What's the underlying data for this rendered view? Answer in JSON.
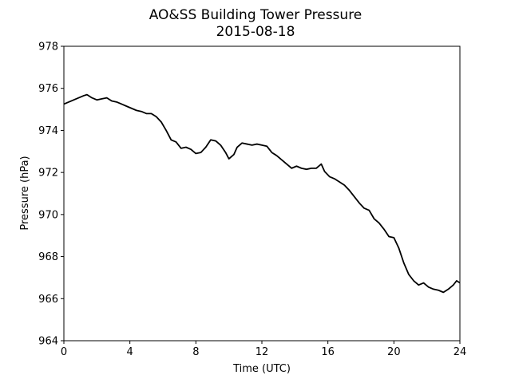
{
  "chart_data": {
    "type": "line",
    "title": "AO&SS Building Tower Pressure",
    "subtitle": "2015-08-18",
    "xlabel": "Time (UTC)",
    "ylabel": "Pressure (hPa)",
    "xlim": [
      0,
      24
    ],
    "ylim": [
      964,
      978
    ],
    "xticks": [
      0,
      4,
      8,
      12,
      16,
      20,
      24
    ],
    "yticks": [
      964,
      966,
      968,
      970,
      972,
      974,
      976,
      978
    ],
    "grid": false,
    "line_color": "#000000",
    "series": [
      {
        "x": [
          0,
          0.3,
          0.6,
          0.9,
          1.2,
          1.4,
          1.7,
          2.0,
          2.3,
          2.6,
          2.9,
          3.2,
          3.5,
          3.8,
          4.1,
          4.4,
          4.7,
          5.0,
          5.3,
          5.6,
          5.9,
          6.2,
          6.5,
          6.8,
          7.1,
          7.4,
          7.7,
          8.0,
          8.3,
          8.6,
          8.9,
          9.2,
          9.5,
          9.8,
          10.0,
          10.3,
          10.5,
          10.8,
          11.1,
          11.4,
          11.7,
          12.0,
          12.3,
          12.6,
          12.9,
          13.2,
          13.5,
          13.8,
          14.1,
          14.4,
          14.7,
          15.0,
          15.3,
          15.6,
          15.8,
          16.1,
          16.4,
          16.7,
          17.0,
          17.3,
          17.6,
          17.9,
          18.2,
          18.5,
          18.8,
          19.1,
          19.4,
          19.7,
          20.0,
          20.3,
          20.6,
          20.9,
          21.2,
          21.5,
          21.8,
          22.1,
          22.4,
          22.7,
          23.0,
          23.3,
          23.6,
          23.8,
          24.0
        ],
        "y": [
          975.25,
          975.35,
          975.45,
          975.55,
          975.65,
          975.7,
          975.55,
          975.45,
          975.5,
          975.55,
          975.4,
          975.35,
          975.25,
          975.15,
          975.05,
          974.95,
          974.9,
          974.8,
          974.8,
          974.65,
          974.4,
          974.0,
          973.55,
          973.45,
          973.15,
          973.2,
          973.1,
          972.9,
          972.95,
          973.2,
          973.55,
          973.5,
          973.3,
          972.95,
          972.65,
          972.85,
          973.2,
          973.4,
          973.35,
          973.3,
          973.35,
          973.3,
          973.25,
          972.95,
          972.8,
          972.6,
          972.4,
          972.2,
          972.3,
          972.2,
          972.15,
          972.2,
          972.2,
          972.4,
          972.05,
          971.8,
          971.7,
          971.55,
          971.4,
          971.15,
          970.85,
          970.55,
          970.3,
          970.2,
          969.8,
          969.6,
          969.3,
          968.95,
          968.9,
          968.4,
          967.7,
          967.15,
          966.85,
          966.65,
          966.75,
          966.55,
          966.45,
          966.4,
          966.3,
          966.45,
          966.65,
          966.85,
          966.75
        ]
      }
    ]
  }
}
